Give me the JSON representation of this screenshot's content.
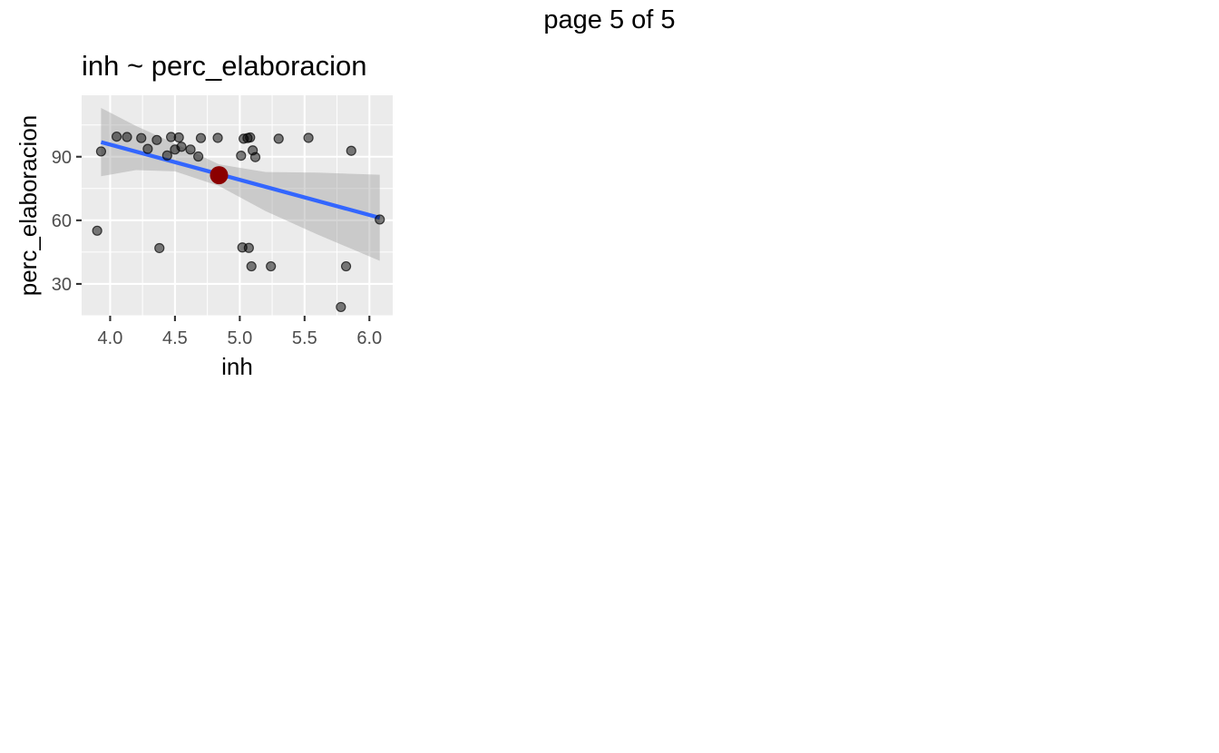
{
  "page_label": "page 5 of 5",
  "chart_data": {
    "type": "scatter",
    "title": "inh ~ perc_elaboracion",
    "xlabel": "inh",
    "ylabel": "perc_elaboracion",
    "xlim": [
      3.78,
      6.18
    ],
    "ylim": [
      15,
      119
    ],
    "x_ticks": [
      4.0,
      4.5,
      5.0,
      5.5,
      6.0
    ],
    "x_tick_labels": [
      "4.0",
      "4.5",
      "5.0",
      "5.5",
      "6.0"
    ],
    "y_ticks": [
      30,
      60,
      90
    ],
    "y_tick_labels": [
      "30",
      "60",
      "90"
    ],
    "grid": true,
    "colors": {
      "points": "#000000",
      "fit_line": "#3366ff",
      "confidence_band": "#999999",
      "highlight": "#8b0000",
      "panel": "#ebebeb"
    },
    "points": [
      {
        "x": 3.9,
        "y": 55.1
      },
      {
        "x": 3.93,
        "y": 92.5
      },
      {
        "x": 4.05,
        "y": 99.5
      },
      {
        "x": 4.13,
        "y": 99.3
      },
      {
        "x": 4.24,
        "y": 98.8
      },
      {
        "x": 4.29,
        "y": 93.7
      },
      {
        "x": 4.36,
        "y": 97.9
      },
      {
        "x": 4.38,
        "y": 46.9
      },
      {
        "x": 4.44,
        "y": 90.6
      },
      {
        "x": 4.47,
        "y": 99.3
      },
      {
        "x": 4.5,
        "y": 93.4
      },
      {
        "x": 4.53,
        "y": 99.1
      },
      {
        "x": 4.55,
        "y": 94.7
      },
      {
        "x": 4.62,
        "y": 93.4
      },
      {
        "x": 4.68,
        "y": 90.1
      },
      {
        "x": 4.7,
        "y": 98.8
      },
      {
        "x": 4.83,
        "y": 98.9
      },
      {
        "x": 5.01,
        "y": 90.5
      },
      {
        "x": 5.02,
        "y": 47.2
      },
      {
        "x": 5.03,
        "y": 98.5
      },
      {
        "x": 5.06,
        "y": 98.8
      },
      {
        "x": 5.07,
        "y": 47.0
      },
      {
        "x": 5.08,
        "y": 99.1
      },
      {
        "x": 5.09,
        "y": 38.3
      },
      {
        "x": 5.1,
        "y": 93.0
      },
      {
        "x": 5.12,
        "y": 89.8
      },
      {
        "x": 5.24,
        "y": 38.3
      },
      {
        "x": 5.3,
        "y": 98.5
      },
      {
        "x": 5.53,
        "y": 98.9
      },
      {
        "x": 5.78,
        "y": 19.1
      },
      {
        "x": 5.82,
        "y": 38.3
      },
      {
        "x": 5.86,
        "y": 92.8
      },
      {
        "x": 6.08,
        "y": 60.4
      }
    ],
    "fit_line": {
      "x": [
        3.93,
        6.08
      ],
      "y": [
        96.9,
        61.2
      ]
    },
    "confidence_band": {
      "x": [
        3.93,
        4.2,
        4.5,
        4.84,
        5.2,
        5.6,
        6.08
      ],
      "upper": [
        113.0,
        104.5,
        96.2,
        86.4,
        82.8,
        82.5,
        81.5
      ],
      "lower": [
        80.8,
        83.7,
        83.1,
        76.2,
        64.3,
        53.3,
        40.9
      ]
    },
    "highlight_point": {
      "x": 4.84,
      "y": 81.3
    }
  }
}
